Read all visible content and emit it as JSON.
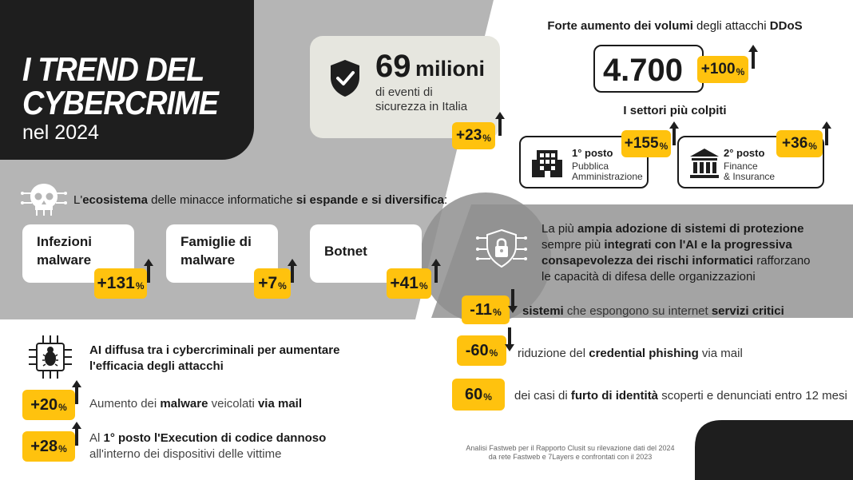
{
  "colors": {
    "accent": "#ffc20e",
    "dark": "#1e1e1e",
    "panel_gray": "#b5b5b5",
    "dark_gray": "#9a9a9a",
    "card_light": "#e6e6df"
  },
  "title": {
    "line1": "I TREND DEL",
    "line2": "CYBERCRIME",
    "line3": "nel 2024"
  },
  "events": {
    "icon": "shield-check-icon",
    "number": "69",
    "unit": "milioni",
    "line1": "di eventi di",
    "line2": "sicurezza in Italia",
    "badge": {
      "value": "+23",
      "pct": "%"
    }
  },
  "ddos": {
    "title_bold1": "Forte aumento dei volumi",
    "title_mid": " degli attacchi ",
    "title_bold2": "DDoS",
    "value": "4.700",
    "badge": {
      "value": "+100",
      "pct": "%"
    },
    "sectors_title": "I settori più colpiti",
    "sectors": [
      {
        "icon": "office-building-icon",
        "rank": "1° posto",
        "line1": "Pubblica",
        "line2": "Amministrazione",
        "badge": "+155",
        "pct": "%"
      },
      {
        "icon": "bank-icon",
        "rank": "2° posto",
        "line1": "Finance",
        "line2": "& Insurance",
        "badge": "+36",
        "pct": "%"
      }
    ]
  },
  "ecosystem": {
    "icon": "skull-circuit-icon",
    "t1": "L'",
    "t2": "ecosistema",
    "t3": " delle minacce informatiche ",
    "t4": "si espande e si diversifica",
    "t5": ":",
    "cards": [
      {
        "line1": "Infezioni",
        "line2": "malware",
        "badge": "+131",
        "pct": "%"
      },
      {
        "line1": "Famiglie di",
        "line2": "malware",
        "badge": "+7",
        "pct": "%"
      },
      {
        "line1": "Botnet",
        "line2": "",
        "badge": "+41",
        "pct": "%"
      }
    ]
  },
  "protection": {
    "icon": "lock-circuit-icon",
    "l1a": "La più ",
    "l1b": "ampia adozione di sistemi di protezione",
    "l2a": "sempre più ",
    "l2b": "integrati con l'AI e la progressiva",
    "l3a": "consapevolezza dei rischi informatici",
    "l3b": " rafforzano",
    "l4": "le capacità di difesa delle organizzazioni",
    "stats": [
      {
        "badge": "-11",
        "pct": "%",
        "a": "sistemi",
        "b": " che espongono su internet ",
        "c": "servizi critici",
        "d": ""
      },
      {
        "badge": "-60",
        "pct": "%",
        "a": "riduzione del ",
        "b": "credential phishing",
        "c": " via mail",
        "d": ""
      },
      {
        "badge": "60",
        "pct": "%",
        "a": "dei casi di ",
        "b": "furto di identità",
        "c": " scoperti e denunciati entro 12 mesi",
        "d": ""
      }
    ]
  },
  "ai": {
    "icon": "bug-chip-icon",
    "line1": "AI diffusa tra i cybercriminali per aumentare",
    "line2": "l'efficacia degli attacchi",
    "rows": [
      {
        "badge": "+20",
        "pct": "%",
        "a": "Aumento dei ",
        "b": "malware",
        "c": " veicolati ",
        "d": "via mail"
      },
      {
        "badge": "+28",
        "pct": "%",
        "a": "Al ",
        "b": "1° posto l'Execution di codice dannoso",
        "c": "all'interno dei dispositivi delle vittime",
        "d": ""
      }
    ]
  },
  "note": {
    "line1": "Analisi Fastweb per il Rapporto Clusit su rilevazione dati del 2024",
    "line2": "da rete Fastweb e 7Layers e confrontati con il 2023"
  }
}
